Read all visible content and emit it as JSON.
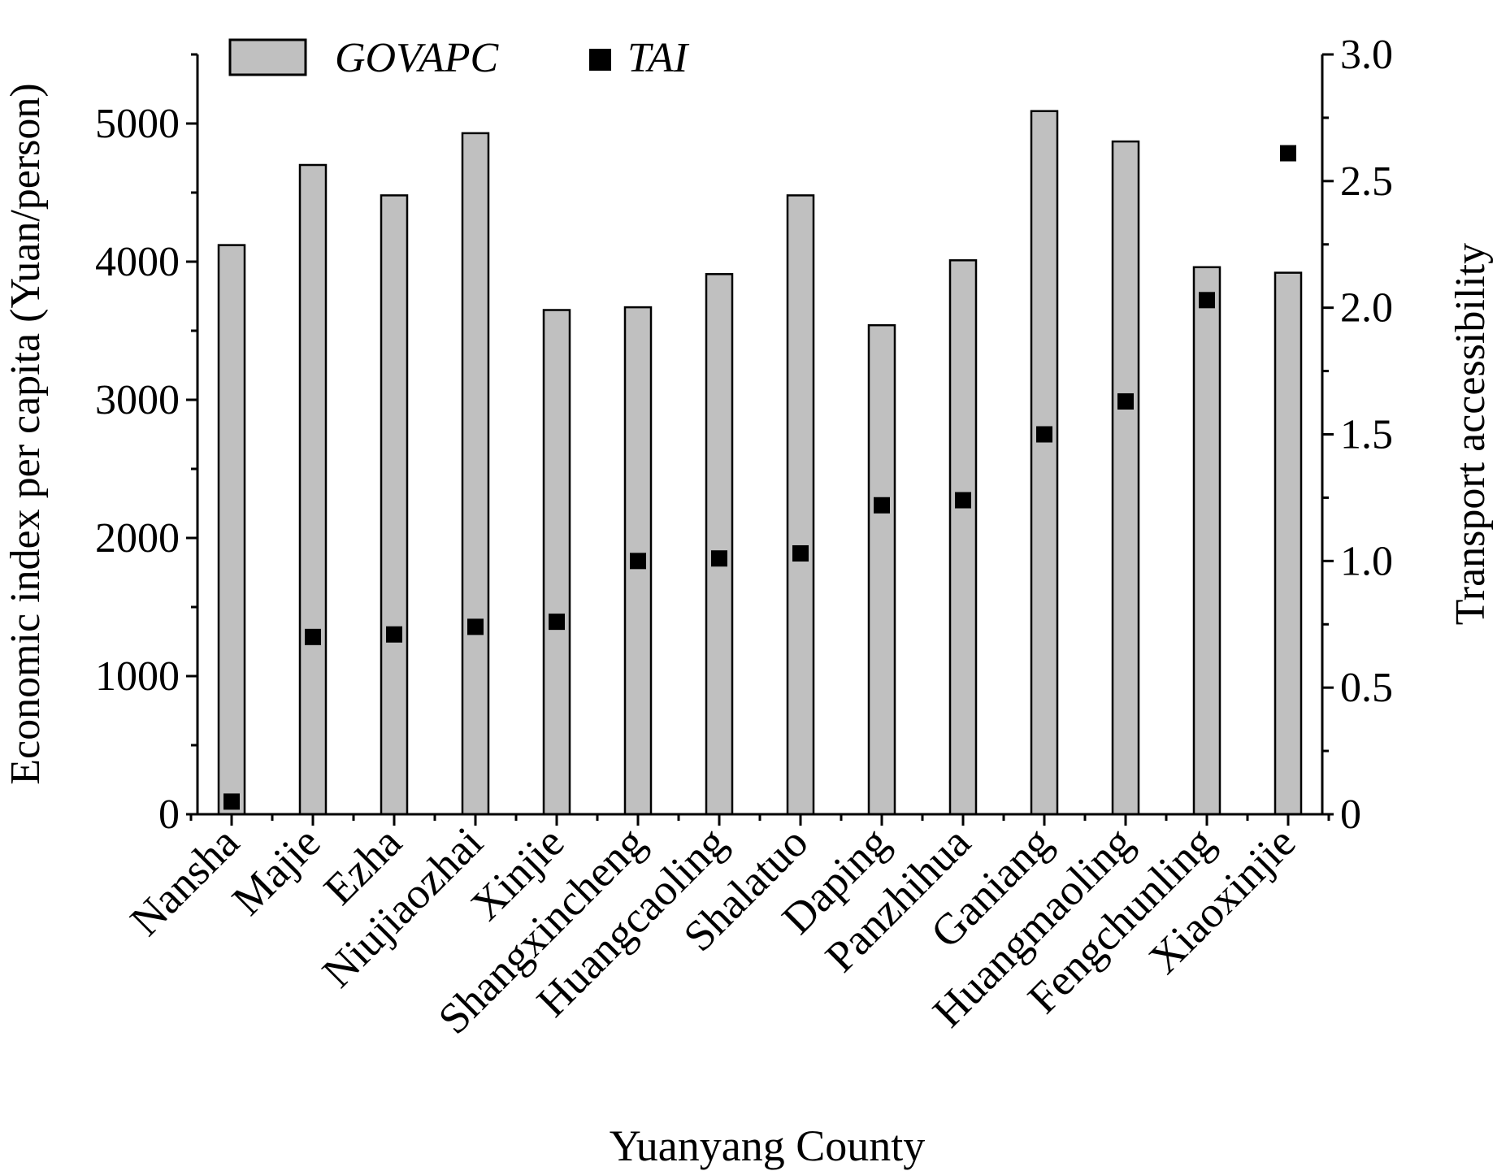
{
  "chart_data": {
    "type": "bar",
    "title": "",
    "xlabel": "Yuanyang County",
    "ylabel": "Economic index per capita (Yuan/person)",
    "y2label": "Transport accessibility",
    "ylim": [
      0,
      5500
    ],
    "y2lim": [
      0,
      3.0
    ],
    "yticks": [
      "0",
      "1000",
      "2000",
      "3000",
      "4000",
      "5000"
    ],
    "y2ticks": [
      "0",
      "0.5",
      "1.0",
      "1.5",
      "2.0",
      "2.5",
      "3.0"
    ],
    "legend_position": "top-left",
    "categories": [
      "Nansha",
      "Majie",
      "Ezha",
      "Niujiaozhai",
      "Xinjie",
      "Shangxincheng",
      "Huangcaoling",
      "Shalatuo",
      "Daping",
      "Panzhihua",
      "Ganiang",
      "Huangmaoling",
      "Fengchunling",
      "Xiaoxinjie"
    ],
    "series": [
      {
        "name": "GOVAPC",
        "type": "bar",
        "axis": "left",
        "color": "#c0c0c0",
        "values": [
          4120,
          4700,
          4480,
          4930,
          3650,
          3670,
          3910,
          4480,
          3540,
          4010,
          5090,
          4870,
          3960,
          3920
        ]
      },
      {
        "name": "TAI",
        "type": "scatter",
        "axis": "right",
        "color": "#000000",
        "values": [
          0.05,
          0.7,
          0.71,
          0.74,
          0.76,
          1.0,
          1.01,
          1.03,
          1.22,
          1.24,
          1.5,
          1.63,
          2.03,
          2.61
        ]
      }
    ]
  }
}
